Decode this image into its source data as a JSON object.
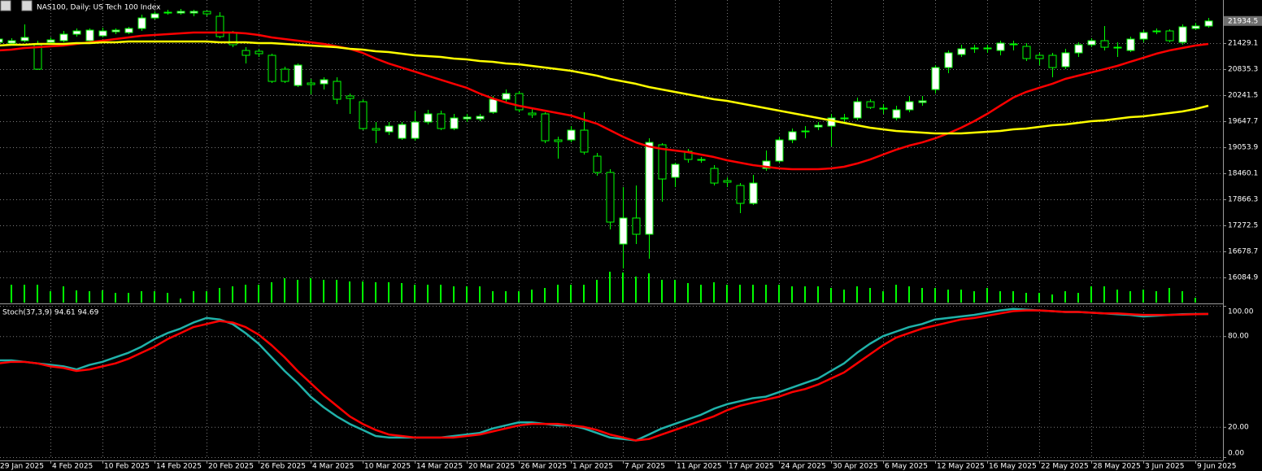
{
  "chart_data": [
    {
      "type": "candlestick",
      "title": "NAS100, Daily: US Tech 100 Index",
      "categories": [
        "29 Jan 2025",
        null,
        null,
        null,
        "4 Feb 2025",
        null,
        null,
        null,
        "10 Feb 2025",
        null,
        null,
        null,
        "14 Feb 2025",
        null,
        null,
        null,
        "20 Feb 2025",
        null,
        null,
        null,
        "26 Feb 2025",
        null,
        null,
        null,
        "4 Mar 2025",
        null,
        null,
        null,
        "10 Mar 2025",
        null,
        null,
        null,
        "14 Mar 2025",
        null,
        null,
        null,
        "20 Mar 2025",
        null,
        null,
        null,
        "26 Mar 2025",
        null,
        null,
        null,
        "1 Apr 2025",
        null,
        null,
        null,
        "7 Apr 2025",
        null,
        null,
        null,
        "11 Apr 2025",
        null,
        null,
        null,
        "17 Apr 2025",
        null,
        null,
        null,
        "24 Apr 2025",
        null,
        null,
        null,
        "30 Apr 2025",
        null,
        null,
        null,
        "6 May 2025",
        null,
        null,
        null,
        "12 May 2025",
        null,
        null,
        null,
        "16 May 2025",
        null,
        null,
        null,
        "22 May 2025",
        null,
        null,
        null,
        "28 May 2025",
        null,
        null,
        null,
        "3 Jun 2025",
        null,
        null,
        null,
        "9 Jun 2025",
        null
      ],
      "open": [
        21448,
        21429,
        21485,
        21392,
        21448,
        21485,
        21633,
        21485,
        21596,
        21689,
        21670,
        21763,
        22004,
        22116,
        22116,
        22116,
        22153,
        22041,
        21670,
        21262,
        21244,
        21151,
        20835,
        20464,
        20520,
        20501,
        20557,
        20223,
        20093,
        19481,
        19407,
        19258,
        19258,
        19629,
        19815,
        19481,
        19703,
        19703,
        19852,
        20149,
        20279,
        19833,
        19815,
        19221,
        19221,
        19444,
        18850,
        18479,
        16846,
        17440,
        17069,
        19110,
        18368,
        18961,
        18776,
        18571,
        18293,
        18182,
        17774,
        18571,
        18739,
        19221,
        19425,
        19518,
        19536,
        19703,
        19722,
        20093,
        19945,
        19722,
        19908,
        20075,
        20371,
        20872,
        21170,
        21299,
        21299,
        21262,
        21411,
        21355,
        21151,
        21151,
        20891,
        21207,
        21392,
        21485,
        21336,
        21262,
        21522,
        21707,
        21707,
        21448,
        21763,
        21819
      ],
      "high": [
        21578,
        21541,
        21856,
        21485,
        21559,
        21707,
        21763,
        21763,
        21782,
        21763,
        21800,
        22079,
        22153,
        22190,
        22208,
        22190,
        22171,
        22134,
        21707,
        21336,
        21299,
        21188,
        20891,
        20965,
        20613,
        20650,
        20650,
        20279,
        20149,
        19629,
        19629,
        19629,
        19870,
        19908,
        19889,
        19815,
        19815,
        19815,
        20223,
        20371,
        20334,
        19963,
        19852,
        19295,
        19536,
        19852,
        18924,
        18553,
        18145,
        18182,
        19258,
        19147,
        18701,
        19017,
        18831,
        18646,
        18368,
        18237,
        18423,
        18980,
        19295,
        19481,
        19536,
        19629,
        19815,
        19815,
        20186,
        20149,
        20038,
        20001,
        20223,
        20223,
        20928,
        21262,
        21392,
        21392,
        21392,
        21485,
        21485,
        21429,
        21207,
        21207,
        21299,
        21448,
        21541,
        21819,
        21448,
        21578,
        21726,
        21763,
        21745,
        21856,
        21893,
        22004
      ],
      "low": [
        21392,
        21392,
        21448,
        20817,
        21392,
        21448,
        21578,
        21429,
        21559,
        21633,
        21633,
        21707,
        21967,
        22079,
        22079,
        22041,
        22041,
        21541,
        21336,
        20965,
        21114,
        20520,
        20520,
        20427,
        20260,
        20371,
        20038,
        19815,
        19444,
        19147,
        19333,
        19221,
        19202,
        19573,
        19444,
        19444,
        19629,
        19648,
        19815,
        20093,
        19852,
        19722,
        19147,
        18794,
        19165,
        18887,
        18405,
        17180,
        16290,
        16846,
        16512,
        17811,
        18145,
        18701,
        18701,
        18182,
        18145,
        17551,
        17736,
        18516,
        18701,
        19147,
        19258,
        19444,
        19072,
        19629,
        19666,
        19926,
        19815,
        19666,
        19852,
        20001,
        20279,
        20743,
        21114,
        21207,
        21207,
        21151,
        21262,
        21021,
        20928,
        20650,
        20835,
        21114,
        21336,
        21262,
        21114,
        21225,
        21448,
        21633,
        21448,
        21392,
        21726,
        21782
      ],
      "close": [
        21522,
        21485,
        21559,
        20835,
        21503,
        21633,
        21707,
        21726,
        21707,
        21726,
        21763,
        22004,
        22097,
        22134,
        22153,
        22153,
        22097,
        21578,
        21392,
        21151,
        21188,
        20557,
        20557,
        20928,
        20483,
        20594,
        20149,
        20167,
        19481,
        19444,
        19536,
        19573,
        19629,
        19815,
        19481,
        19722,
        19741,
        19759,
        20149,
        20279,
        19908,
        19796,
        19202,
        19184,
        19444,
        18943,
        18479,
        17347,
        17440,
        17069,
        19165,
        18330,
        18664,
        18776,
        18757,
        18237,
        18256,
        17774,
        18237,
        18739,
        19221,
        19407,
        19407,
        19555,
        19722,
        19722,
        20093,
        19963,
        19945,
        19908,
        20093,
        20112,
        20872,
        21207,
        21299,
        21318,
        21318,
        21429,
        21392,
        21077,
        21077,
        20872,
        21207,
        21392,
        21485,
        21336,
        21336,
        21522,
        21670,
        21707,
        21485,
        21800,
        21819,
        21934.5
      ],
      "volume": [
        4,
        22,
        22,
        22,
        14,
        20,
        15,
        14,
        15,
        12,
        12,
        14,
        14,
        12,
        5,
        14,
        14,
        18,
        20,
        22,
        22,
        25,
        30,
        28,
        30,
        28,
        28,
        26,
        26,
        25,
        25,
        24,
        22,
        22,
        22,
        20,
        20,
        20,
        14,
        14,
        14,
        16,
        18,
        22,
        22,
        22,
        28,
        38,
        37,
        32,
        36,
        28,
        28,
        24,
        22,
        25,
        22,
        22,
        22,
        22,
        22,
        20,
        20,
        20,
        18,
        16,
        20,
        18,
        14,
        22,
        20,
        18,
        18,
        16,
        16,
        14,
        18,
        14,
        14,
        12,
        12,
        10,
        14,
        12,
        20,
        20,
        16,
        14,
        16,
        14,
        18,
        14,
        6,
        0
      ],
      "up_color": "#ffffff",
      "down_color": "#000000",
      "wick_color": "#00ff00",
      "volume_color": "#00ff00",
      "series": [
        {
          "color": "#ff0000",
          "values": [
            21262,
            21281,
            21318,
            21336,
            21355,
            21374,
            21411,
            21448,
            21485,
            21522,
            21559,
            21596,
            21615,
            21633,
            21652,
            21670,
            21670,
            21670,
            21670,
            21652,
            21615,
            21559,
            21522,
            21485,
            21448,
            21411,
            21355,
            21299,
            21207,
            21077,
            20965,
            20872,
            20780,
            20687,
            20594,
            20501,
            20409,
            20279,
            20167,
            20075,
            20001,
            19945,
            19889,
            19833,
            19778,
            19685,
            19592,
            19444,
            19295,
            19165,
            19072,
            19017,
            18980,
            18943,
            18887,
            18831,
            18757,
            18701,
            18646,
            18609,
            18571,
            18553,
            18553,
            18553,
            18571,
            18609,
            18683,
            18775,
            18887,
            18998,
            19091,
            19165,
            19258,
            19370,
            19499,
            19648,
            19815,
            20001,
            20186,
            20316,
            20409,
            20501,
            20613,
            20687,
            20761,
            20835,
            20910,
            21003,
            21095,
            21188,
            21262,
            21318,
            21374,
            21411
          ]
        },
        {
          "color": "#ffff00",
          "values": [
            21374,
            21392,
            21392,
            21411,
            21411,
            21411,
            21429,
            21429,
            21448,
            21448,
            21466,
            21466,
            21466,
            21466,
            21466,
            21466,
            21466,
            21448,
            21448,
            21448,
            21429,
            21429,
            21411,
            21392,
            21374,
            21355,
            21336,
            21299,
            21281,
            21244,
            21225,
            21188,
            21151,
            21132,
            21114,
            21077,
            21058,
            21021,
            21003,
            20965,
            20947,
            20910,
            20872,
            20835,
            20798,
            20743,
            20687,
            20613,
            20557,
            20501,
            20427,
            20371,
            20316,
            20260,
            20204,
            20149,
            20112,
            20056,
            20001,
            19945,
            19889,
            19833,
            19778,
            19722,
            19666,
            19611,
            19555,
            19499,
            19462,
            19425,
            19406,
            19388,
            19370,
            19370,
            19370,
            19388,
            19406,
            19425,
            19462,
            19481,
            19518,
            19555,
            19573,
            19611,
            19648,
            19666,
            19703,
            19740,
            19759,
            19796,
            19833,
            19870,
            19926,
            20001
          ]
        }
      ],
      "ylim": [
        15510,
        22413
      ],
      "yticks": [
        16084.9,
        16678.7,
        17272.5,
        17866.3,
        18460.1,
        19053.9,
        19647.7,
        20241.5,
        20835.3,
        21429.1
      ],
      "grid": true
    },
    {
      "type": "line",
      "title": "Stoch(37,3,9) 94.61 94.69",
      "series": [
        {
          "color": "#20b2aa",
          "values": [
            64,
            64,
            63,
            62,
            61,
            60,
            58,
            61,
            63,
            66,
            69,
            73,
            78,
            82,
            85,
            89,
            92,
            91,
            88,
            82,
            75,
            66,
            57,
            49,
            40,
            33,
            27,
            22,
            18,
            14,
            13,
            13,
            13,
            13,
            13,
            14,
            15,
            16,
            19,
            21,
            23,
            23,
            22,
            21,
            21,
            19,
            16,
            13,
            12,
            11,
            15,
            19,
            22,
            25,
            28,
            32,
            35,
            37,
            39,
            40,
            43,
            46,
            49,
            52,
            57,
            62,
            69,
            75,
            80,
            83,
            86,
            88,
            91,
            92,
            93,
            94,
            95.5,
            97,
            98,
            97.5,
            97,
            96.5,
            96,
            96,
            95.5,
            95,
            94.5,
            94,
            93,
            93.5,
            94,
            94.5,
            94.6,
            94.61
          ]
        },
        {
          "color": "#ff0000",
          "values": [
            62,
            63,
            63,
            62,
            60,
            59,
            57,
            58,
            60,
            62,
            65,
            69,
            73,
            78,
            82,
            86,
            88,
            90,
            89,
            86,
            81,
            74,
            66,
            57,
            49,
            41,
            34,
            27,
            22,
            18,
            15,
            14,
            13,
            13,
            13,
            13,
            14,
            15,
            17,
            19,
            21,
            22,
            22,
            22,
            21,
            20,
            18,
            15,
            13,
            11,
            12,
            15,
            18,
            21,
            24,
            27,
            31,
            34,
            36,
            38,
            40,
            43,
            45,
            48,
            52,
            56,
            62,
            68,
            74,
            79,
            82,
            85,
            87,
            89,
            91,
            92,
            93.5,
            95,
            96.5,
            97,
            97,
            96.5,
            96,
            96,
            95.5,
            95,
            95,
            94.5,
            94,
            94,
            94,
            94.2,
            94.5,
            94.69
          ]
        }
      ],
      "ylim": [
        0,
        100
      ],
      "yticks": [
        {
          "value": 0,
          "label": "0.00"
        },
        {
          "value": 20,
          "label": "20.00"
        },
        {
          "value": 80,
          "label": "80.00"
        },
        {
          "value": 100,
          "label": "100.00"
        }
      ],
      "grid": true
    }
  ]
}
